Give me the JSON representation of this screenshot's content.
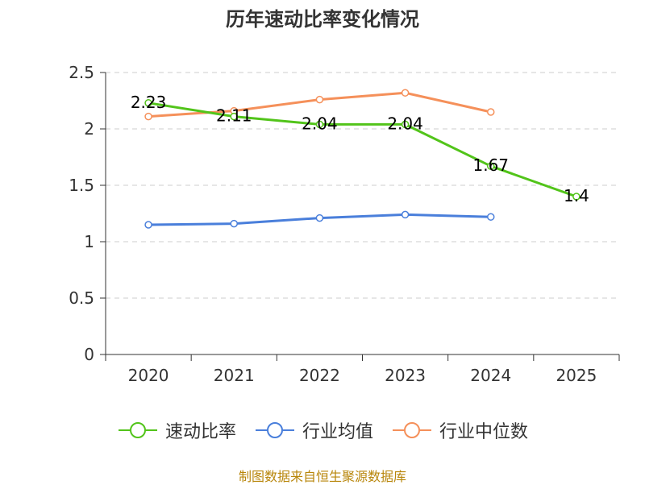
{
  "chart_data": {
    "type": "line",
    "title": "历年速动比率变化情况",
    "categories": [
      "2020",
      "2021",
      "2022",
      "2023",
      "2024",
      "2025"
    ],
    "ylim": [
      0,
      2.5
    ],
    "yticks": [
      "0",
      "0.5",
      "1",
      "1.5",
      "2",
      "2.5"
    ],
    "grid": true,
    "legend_position": "bottom",
    "series": [
      {
        "name": "速动比率",
        "color": "#52c41a",
        "values": [
          2.23,
          2.11,
          2.04,
          2.04,
          1.67,
          1.4
        ],
        "labels": [
          "2.23",
          "2.11",
          "2.04",
          "2.04",
          "1.67",
          "1.4"
        ]
      },
      {
        "name": "行业均值",
        "color": "#4a7fdb",
        "values": [
          1.15,
          1.16,
          1.21,
          1.24,
          1.22,
          null
        ]
      },
      {
        "name": "行业中位数",
        "color": "#f5905a",
        "values": [
          2.11,
          2.16,
          2.26,
          2.32,
          2.15,
          null
        ]
      }
    ]
  },
  "source": "制图数据来自恒生聚源数据库"
}
